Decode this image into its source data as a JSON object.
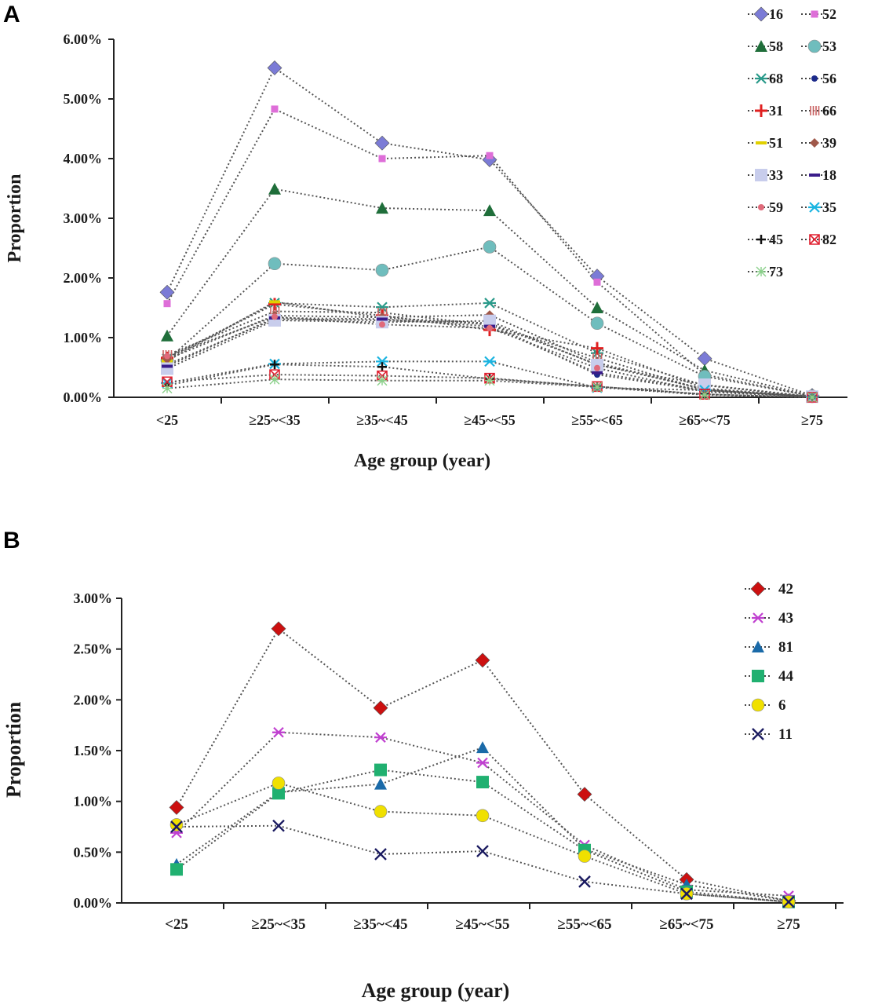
{
  "panels": {
    "a": {
      "label": "A"
    },
    "b": {
      "label": "B"
    }
  },
  "chart_data": [
    {
      "type": "line",
      "panel": "A",
      "ylabel": "Proportion",
      "xlabel": "Age group (year)",
      "categories": [
        "<25",
        "≥25~<35",
        "≥35~<45",
        "≥45~<55",
        "≥55~<65",
        "≥65~<75",
        "≥75"
      ],
      "y_ticks": [
        "0.00%",
        "1.00%",
        "2.00%",
        "3.00%",
        "4.00%",
        "5.00%",
        "6.00%"
      ],
      "ylim": [
        0,
        6
      ],
      "y_unit": "%",
      "line_style": "dotted",
      "legend_position": "top-right",
      "series": [
        {
          "name": "16",
          "marker": "diamond",
          "color": "#7b7bd6",
          "values": [
            1.76,
            5.52,
            4.26,
            3.98,
            2.03,
            0.65,
            0.03
          ]
        },
        {
          "name": "52",
          "marker": "square-small",
          "color": "#de6ed8",
          "values": [
            1.57,
            4.83,
            4.0,
            4.05,
            1.93,
            0.38,
            0.02
          ]
        },
        {
          "name": "58",
          "marker": "triangle",
          "color": "#1f6e3a",
          "values": [
            1.03,
            3.49,
            3.17,
            3.13,
            1.5,
            0.45,
            0.03
          ]
        },
        {
          "name": "53",
          "marker": "circle",
          "color": "#6fbdbd",
          "values": [
            0.62,
            2.24,
            2.13,
            2.52,
            1.24,
            0.35,
            0.02
          ]
        },
        {
          "name": "68",
          "marker": "asterisk",
          "color": "#2a9a8a",
          "values": [
            0.65,
            1.58,
            1.51,
            1.58,
            0.74,
            0.2,
            0.01
          ]
        },
        {
          "name": "56",
          "marker": "dot",
          "color": "#1c2a8a",
          "values": [
            0.55,
            1.31,
            1.29,
            1.23,
            0.38,
            0.11,
            0.01
          ]
        },
        {
          "name": "31",
          "marker": "plus",
          "color": "#e02020",
          "values": [
            0.66,
            1.56,
            1.37,
            1.13,
            0.82,
            0.15,
            0.01
          ]
        },
        {
          "name": "66",
          "marker": "bars",
          "color": "#c96060",
          "values": [
            0.71,
            1.44,
            1.42,
            1.21,
            0.66,
            0.12,
            0.01
          ]
        },
        {
          "name": "51",
          "marker": "dash",
          "color": "#e0d000",
          "values": [
            0.61,
            1.6,
            1.33,
            1.24,
            0.55,
            0.14,
            0.01
          ]
        },
        {
          "name": "39",
          "marker": "diamond-small",
          "color": "#a0584a",
          "values": [
            0.64,
            1.37,
            1.34,
            1.38,
            0.58,
            0.13,
            0.01
          ]
        },
        {
          "name": "33",
          "marker": "square",
          "color": "#c8cdec",
          "values": [
            0.48,
            1.29,
            1.26,
            1.28,
            0.54,
            0.21,
            0.01
          ]
        },
        {
          "name": "18",
          "marker": "dash",
          "color": "#3a1c8a",
          "values": [
            0.52,
            1.33,
            1.31,
            1.19,
            0.41,
            0.12,
            0.01
          ]
        },
        {
          "name": "59",
          "marker": "star-small",
          "color": "#e06a7a",
          "values": [
            0.69,
            1.35,
            1.22,
            1.16,
            0.49,
            0.09,
            0.01
          ]
        },
        {
          "name": "35",
          "marker": "asterisk",
          "color": "#1ab4e0",
          "values": [
            0.24,
            0.56,
            0.6,
            0.6,
            0.16,
            0.12,
            0.01
          ]
        },
        {
          "name": "45",
          "marker": "plus-small",
          "color": "#111111",
          "values": [
            0.2,
            0.55,
            0.51,
            0.31,
            0.18,
            0.05,
            0.0
          ]
        },
        {
          "name": "82",
          "marker": "checker",
          "color": "#e02030",
          "values": [
            0.26,
            0.38,
            0.36,
            0.32,
            0.18,
            0.05,
            0.0
          ]
        },
        {
          "name": "73",
          "marker": "crosshatch",
          "color": "#8ad08a",
          "values": [
            0.15,
            0.3,
            0.28,
            0.28,
            0.17,
            0.04,
            0.0
          ]
        }
      ]
    },
    {
      "type": "line",
      "panel": "B",
      "ylabel": "Proportion",
      "xlabel": "Age group (year)",
      "categories": [
        "<25",
        "≥25~<35",
        "≥35~<45",
        "≥45~<55",
        "≥55~<65",
        "≥65~<75",
        "≥75"
      ],
      "y_ticks": [
        "0.00%",
        "0.50%",
        "1.00%",
        "1.50%",
        "2.00%",
        "2.50%",
        "3.00%"
      ],
      "ylim": [
        0,
        3
      ],
      "y_unit": "%",
      "line_style": "dotted",
      "legend_position": "top-right",
      "series": [
        {
          "name": "42",
          "marker": "diamond",
          "color": "#cc1010",
          "values": [
            0.94,
            2.7,
            1.92,
            2.39,
            1.07,
            0.23,
            0.02
          ]
        },
        {
          "name": "43",
          "marker": "asterisk",
          "color": "#c040d0",
          "values": [
            0.69,
            1.68,
            1.63,
            1.38,
            0.57,
            0.13,
            0.07
          ]
        },
        {
          "name": "81",
          "marker": "triangle",
          "color": "#1a6aa8",
          "values": [
            0.38,
            1.09,
            1.17,
            1.53,
            0.53,
            0.18,
            0.02
          ]
        },
        {
          "name": "44",
          "marker": "square",
          "color": "#20b070",
          "values": [
            0.33,
            1.08,
            1.31,
            1.19,
            0.52,
            0.11,
            0.01
          ]
        },
        {
          "name": "6",
          "marker": "circle",
          "color": "#f0e000",
          "values": [
            0.77,
            1.18,
            0.9,
            0.86,
            0.46,
            0.09,
            0.01
          ]
        },
        {
          "name": "11",
          "marker": "x",
          "color": "#1a1a60",
          "values": [
            0.75,
            0.76,
            0.48,
            0.51,
            0.21,
            0.09,
            0.01
          ]
        }
      ]
    }
  ]
}
